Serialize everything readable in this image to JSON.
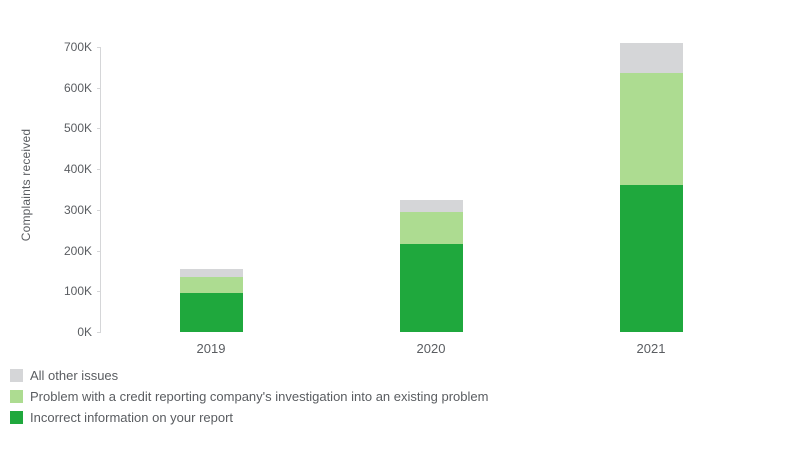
{
  "chart_data": {
    "type": "bar",
    "stacked": true,
    "title": "",
    "xlabel": "",
    "ylabel": "Complaints received",
    "categories": [
      "2019",
      "2020",
      "2021"
    ],
    "series": [
      {
        "name": "Incorrect information on your report",
        "color": "#1fa83d",
        "values": [
          97000,
          215000,
          360000
        ]
      },
      {
        "name": "Problem with a credit reporting company's investigation into an existing problem",
        "color": "#addc91",
        "values": [
          38000,
          80000,
          275000
        ]
      },
      {
        "name": "All other issues",
        "color": "#d5d6d8",
        "values": [
          20000,
          30000,
          75000
        ]
      }
    ],
    "totals": [
      155000,
      325000,
      710000
    ],
    "ylim": [
      0,
      700000
    ],
    "ytick_step": 100000,
    "ytick_labels": [
      "0K",
      "100K",
      "200K",
      "300K",
      "400K",
      "500K",
      "600K",
      "700K"
    ],
    "grid": "off",
    "legend_position": "bottom-left",
    "legend_order": [
      "All other issues",
      "Problem with a credit reporting company's investigation into an existing problem",
      "Incorrect information on your report"
    ]
  },
  "colors": {
    "axis_line": "#d5d6d8",
    "text": "#5a5d61",
    "background": "#ffffff"
  }
}
